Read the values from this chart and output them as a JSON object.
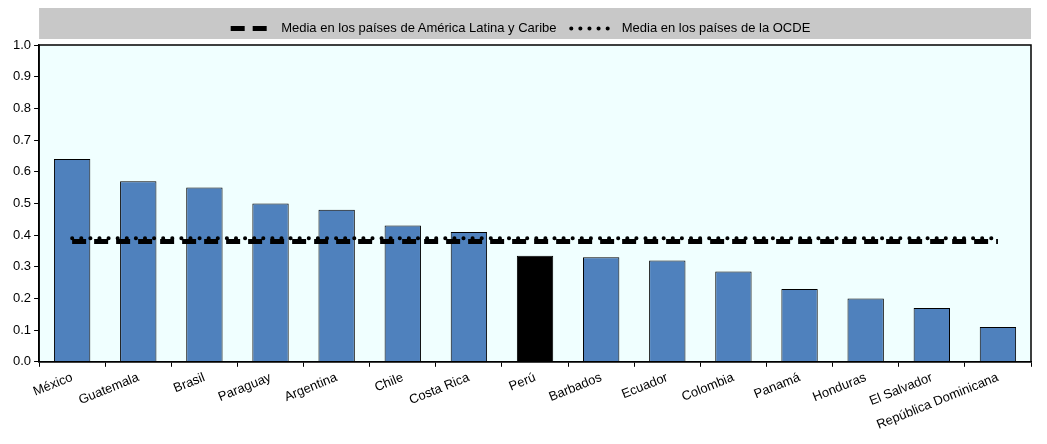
{
  "chart_data": {
    "type": "bar",
    "categories": [
      "México",
      "Guatemala",
      "Brasil",
      "Paraguay",
      "Argentina",
      "Chile",
      "Costa Rica",
      "Perú",
      "Barbados",
      "Ecuador",
      "Colombia",
      "Panamá",
      "Honduras",
      "El Salvador",
      "República Dominicana"
    ],
    "series": [
      {
        "colors": [
          "#4f81bd",
          "#4f81bd",
          "#4f81bd",
          "#4f81bd",
          "#4f81bd",
          "#4f81bd",
          "#4f81bd",
          "#000000",
          "#4f81bd",
          "#4f81bd",
          "#4f81bd",
          "#4f81bd",
          "#4f81bd",
          "#4f81bd",
          "#4f81bd"
        ],
        "values": [
          0.64,
          0.57,
          0.55,
          0.5,
          0.48,
          0.43,
          0.41,
          0.335,
          0.33,
          0.32,
          0.285,
          0.23,
          0.2,
          0.17,
          0.11
        ]
      },
      {
        "type": "line",
        "name": "Media en los países de América Latina y Caribe",
        "color": "#000000",
        "line_style": "dashed",
        "values": [
          0.38,
          0.38,
          0.38,
          0.38,
          0.38,
          0.38,
          0.38,
          0.38,
          0.38,
          0.38,
          0.38,
          0.38,
          0.38,
          0.38,
          0.38
        ]
      },
      {
        "type": "line",
        "name": "Media en los países de la OCDE",
        "color": "#000000",
        "line_style": "dotted",
        "values": [
          0.39,
          0.39,
          0.39,
          0.39,
          0.39,
          0.39,
          0.39,
          0.39,
          0.39,
          0.39,
          0.39,
          0.39,
          0.39,
          0.39,
          0.39
        ]
      }
    ],
    "ylim": [
      0,
      1
    ],
    "yticks": [
      {
        "value": 0,
        "label": "0.0"
      },
      0.1,
      0.2,
      0.3,
      0.4,
      0.5,
      0.6,
      0.7,
      0.8,
      0.9,
      {
        "value": 1,
        "label": "1.0"
      }
    ],
    "grid": false,
    "legend": "top",
    "marker": "none"
  }
}
